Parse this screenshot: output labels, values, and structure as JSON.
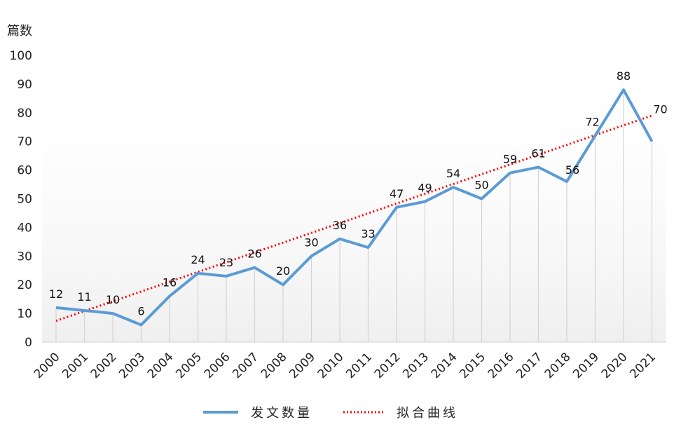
{
  "chart_data": {
    "type": "line",
    "ylabel": "篇数",
    "ylim": [
      0,
      100
    ],
    "yticks": [
      0,
      10,
      20,
      30,
      40,
      50,
      60,
      70,
      80,
      90,
      100
    ],
    "categories": [
      "2000",
      "2001",
      "2002",
      "2003",
      "2004",
      "2005",
      "2006",
      "2007",
      "2008",
      "2009",
      "2010",
      "2011",
      "2012",
      "2013",
      "2014",
      "2015",
      "2016",
      "2017",
      "2018",
      "2019",
      "2020",
      "2021"
    ],
    "series": [
      {
        "name": "发文数量",
        "color": "#5b9bd5",
        "values": [
          12,
          11,
          10,
          6,
          16,
          24,
          23,
          26,
          20,
          30,
          36,
          33,
          47,
          49,
          54,
          50,
          59,
          61,
          56,
          72,
          88,
          70
        ]
      },
      {
        "name": "拟合曲线",
        "color": "#ff0000",
        "style": "dotted",
        "start": 7.4,
        "end": 79
      }
    ],
    "legend": "bottom",
    "grid": false
  }
}
